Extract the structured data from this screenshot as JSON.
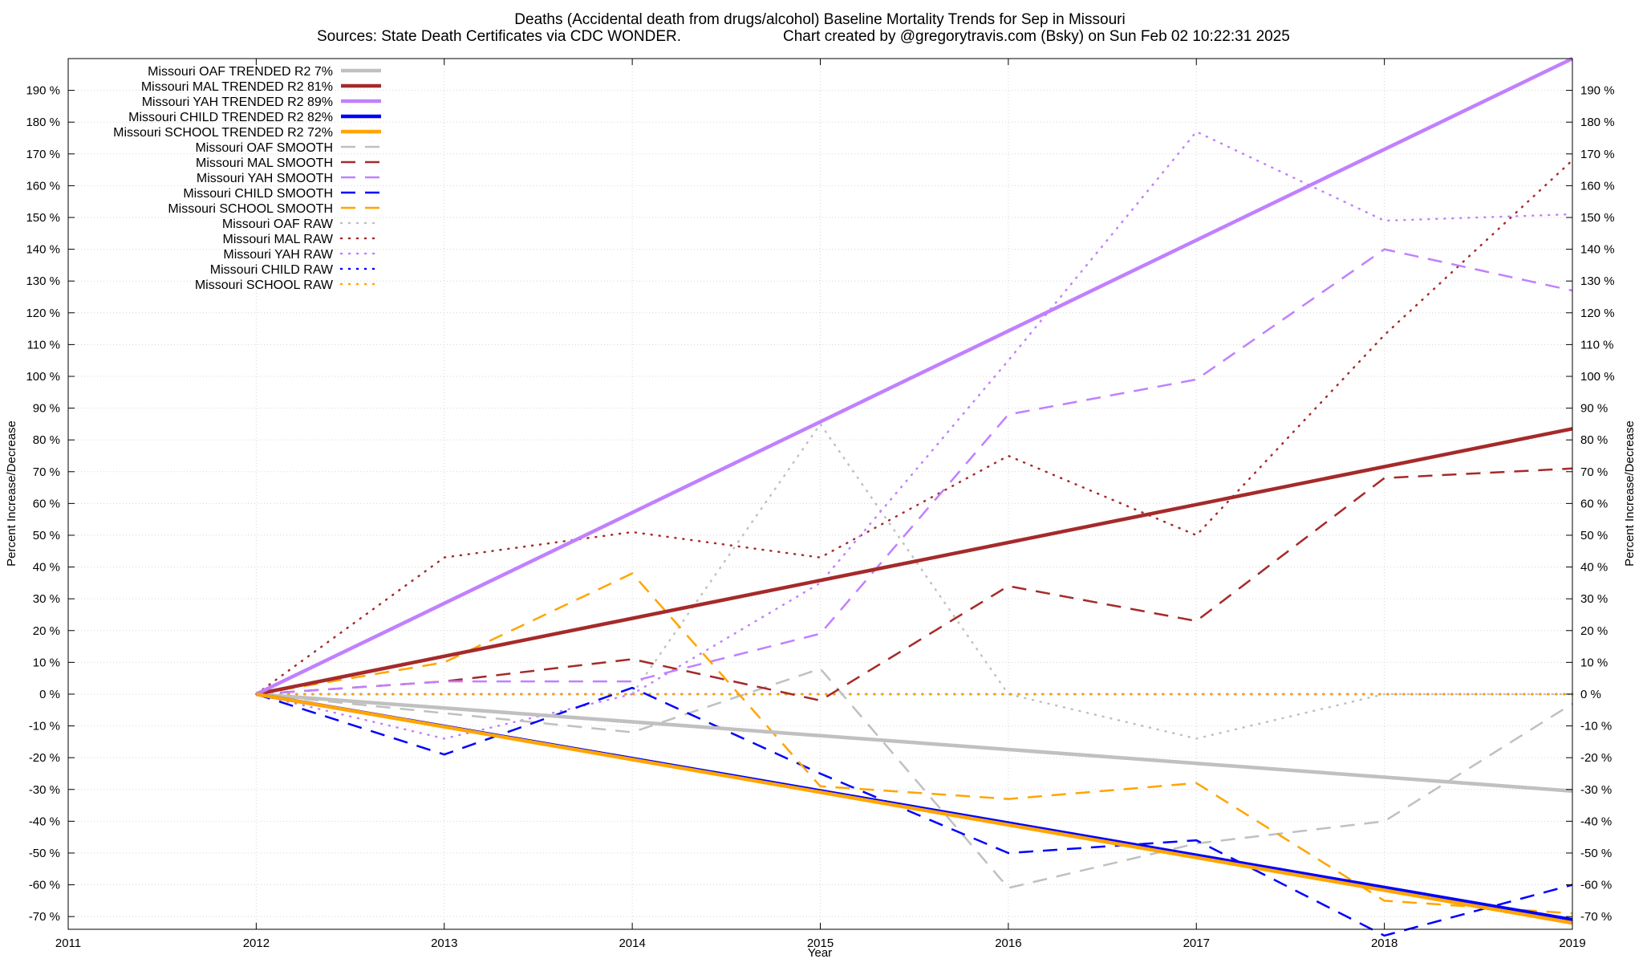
{
  "chart_data": {
    "type": "line",
    "title": "Deaths (Accidental death from drugs/alcohol)  Baseline Mortality Trends for Sep in Missouri",
    "subtitle_left": "Sources: State Death Certificates via CDC WONDER.",
    "subtitle_right": "Chart created by @gregorytravis.com (Bsky) on Sun Feb 02 10:22:31 2025",
    "xlabel": "Year",
    "ylabel": "Percent Increase/Decrease",
    "y2label": "Percent Increase/Decrease",
    "xlim": [
      2011,
      2019
    ],
    "ylim": [
      -74,
      200
    ],
    "x_ticks": [
      2011,
      2012,
      2013,
      2014,
      2015,
      2016,
      2017,
      2018,
      2019
    ],
    "x_tick_labels": [
      "2011",
      "2012",
      "2013",
      "2014",
      "2015",
      "2016",
      "2017",
      "2018",
      "2019"
    ],
    "y_ticks": [
      -70,
      -60,
      -50,
      -40,
      -30,
      -20,
      -10,
      0,
      10,
      20,
      30,
      40,
      50,
      60,
      70,
      80,
      90,
      100,
      110,
      120,
      130,
      140,
      150,
      160,
      170,
      180,
      190
    ],
    "y_tick_labels": [
      "-70 %",
      "-60 %",
      "-50 %",
      "-40 %",
      "-30 %",
      "-20 %",
      "-10 %",
      "0 %",
      "10 %",
      "20 %",
      "30 %",
      "40 %",
      "50 %",
      "60 %",
      "70 %",
      "80 %",
      "90 %",
      "100 %",
      "110 %",
      "120 %",
      "130 %",
      "140 %",
      "150 %",
      "160 %",
      "170 %",
      "180 %",
      "190 %"
    ],
    "grid": true,
    "legend_position": "top-left",
    "series": [
      {
        "name": "Missouri OAF TRENDED R2  7%",
        "style": "solid",
        "color": "#c0c0c0",
        "x": [
          2012,
          2019
        ],
        "values": [
          0,
          -30.5
        ]
      },
      {
        "name": "Missouri MAL TRENDED R2  81%",
        "style": "solid",
        "color": "#a52a2a",
        "x": [
          2012,
          2019
        ],
        "values": [
          0,
          83.5
        ]
      },
      {
        "name": "Missouri YAH TRENDED R2  89%",
        "style": "solid",
        "color": "#c080ff",
        "x": [
          2012,
          2019
        ],
        "values": [
          0,
          200
        ]
      },
      {
        "name": "Missouri CHILD TRENDED R2  82%",
        "style": "solid",
        "color": "#0000ff",
        "x": [
          2012,
          2019
        ],
        "values": [
          0,
          -71
        ]
      },
      {
        "name": "Missouri SCHOOL TRENDED R2  72%",
        "style": "solid",
        "color": "#ffa500",
        "x": [
          2012,
          2019
        ],
        "values": [
          0,
          -72
        ]
      },
      {
        "name": "Missouri OAF SMOOTH",
        "style": "dashed",
        "color": "#c0c0c0",
        "x": [
          2012,
          2013,
          2014,
          2015,
          2016,
          2017,
          2018,
          2019
        ],
        "values": [
          0,
          -6,
          -12,
          8,
          -61,
          -47,
          -40,
          -3
        ]
      },
      {
        "name": "Missouri MAL SMOOTH",
        "style": "dashed",
        "color": "#a52a2a",
        "x": [
          2012,
          2013,
          2014,
          2015,
          2016,
          2017,
          2018,
          2019
        ],
        "values": [
          0,
          4,
          11,
          -2,
          34,
          23,
          68,
          71
        ]
      },
      {
        "name": "Missouri YAH SMOOTH",
        "style": "dashed",
        "color": "#c080ff",
        "x": [
          2012,
          2013,
          2014,
          2015,
          2016,
          2017,
          2018,
          2019
        ],
        "values": [
          0,
          4,
          4,
          19,
          88,
          99,
          140,
          127
        ]
      },
      {
        "name": "Missouri CHILD SMOOTH",
        "style": "dashed",
        "color": "#0000ff",
        "x": [
          2012,
          2013,
          2014,
          2015,
          2016,
          2017,
          2018,
          2019
        ],
        "values": [
          0,
          -19,
          2,
          -25,
          -50,
          -46,
          -76,
          -60
        ]
      },
      {
        "name": "Missouri SCHOOL SMOOTH",
        "style": "dashed",
        "color": "#ffa500",
        "x": [
          2012,
          2013,
          2014,
          2015,
          2016,
          2017,
          2018,
          2019
        ],
        "values": [
          0,
          10,
          38,
          -29,
          -33,
          -28,
          -65,
          -69
        ]
      },
      {
        "name": "Missouri OAF RAW",
        "style": "dotted",
        "color": "#c0c0c0",
        "x": [
          2012,
          2013,
          2014,
          2015,
          2016,
          2017,
          2018,
          2019
        ],
        "values": [
          0,
          0,
          0,
          85,
          0,
          -14,
          0,
          0
        ]
      },
      {
        "name": "Missouri MAL RAW",
        "style": "dotted",
        "color": "#a52a2a",
        "x": [
          2012,
          2013,
          2014,
          2015,
          2016,
          2017,
          2018,
          2019
        ],
        "values": [
          0,
          43,
          51,
          43,
          75,
          50,
          113,
          168
        ]
      },
      {
        "name": "Missouri YAH RAW",
        "style": "dotted",
        "color": "#c080ff",
        "x": [
          2012,
          2013,
          2014,
          2015,
          2016,
          2017,
          2018,
          2019
        ],
        "values": [
          0,
          -14,
          0,
          35,
          105,
          177,
          149,
          151
        ]
      },
      {
        "name": "Missouri CHILD RAW",
        "style": "dotted",
        "color": "#0000ff",
        "x": [
          2012,
          2013,
          2014,
          2015,
          2016,
          2017,
          2018,
          2019
        ],
        "values": [
          0,
          0,
          0,
          0,
          0,
          0,
          0,
          0
        ]
      },
      {
        "name": "Missouri SCHOOL RAW",
        "style": "dotted",
        "color": "#ffa500",
        "x": [
          2012,
          2013,
          2014,
          2015,
          2016,
          2017,
          2018,
          2019
        ],
        "values": [
          0,
          0,
          0,
          0,
          0,
          0,
          0,
          0
        ]
      }
    ]
  }
}
